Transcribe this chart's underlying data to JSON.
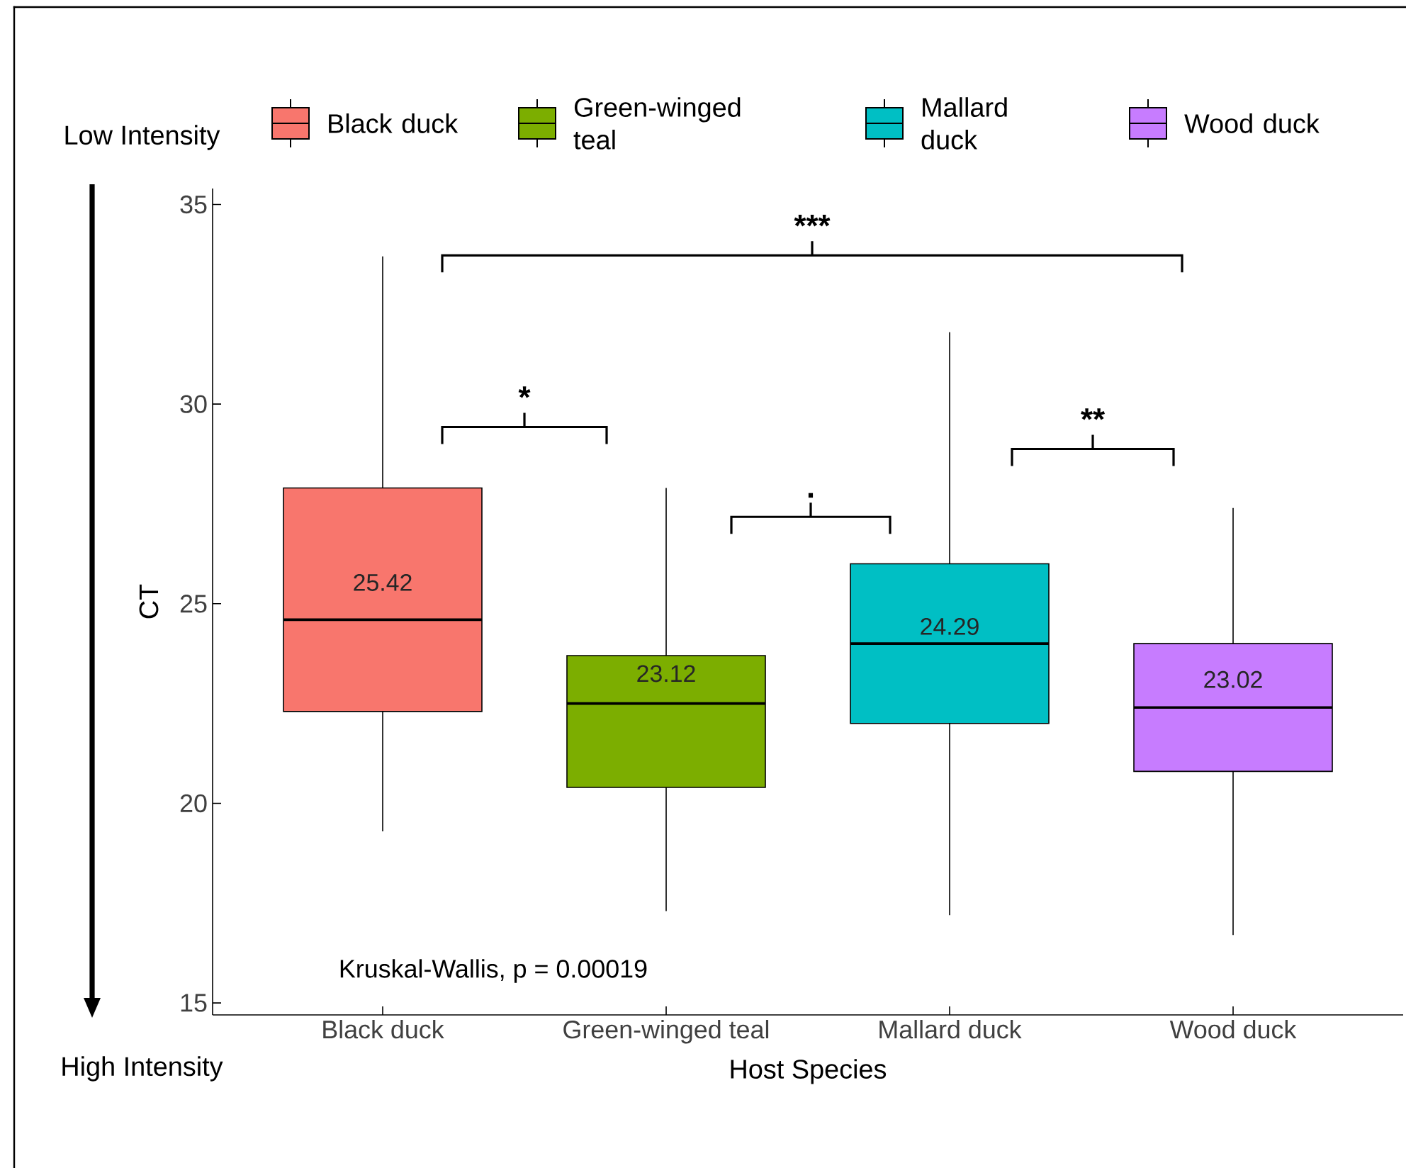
{
  "chart_data": {
    "type": "box",
    "xlabel": "Host Species",
    "ylabel": "CT",
    "categories": [
      "Black duck",
      "Green-winged teal",
      "Mallard duck",
      "Wood duck"
    ],
    "series": [
      {
        "name": "Black duck",
        "color": "#f8766d",
        "boxes": [
          {
            "low": 19.3,
            "q1": 22.3,
            "median": 24.6,
            "q3": 27.9,
            "high": 33.7
          },
          null,
          null,
          null
        ]
      },
      {
        "name": "Green-winged teal",
        "color": "#7cae00",
        "boxes": [
          null,
          {
            "low": 17.3,
            "q1": 20.4,
            "median": 22.5,
            "q3": 23.7,
            "high": 27.9
          },
          null,
          null
        ]
      },
      {
        "name": "Mallard duck",
        "color": "#00bfc4",
        "boxes": [
          null,
          null,
          {
            "low": 17.2,
            "q1": 22.0,
            "median": 24.0,
            "q3": 26.0,
            "high": 31.8
          },
          null
        ]
      },
      {
        "name": "Wood duck",
        "color": "#c77cff",
        "boxes": [
          null,
          null,
          null,
          {
            "low": 16.7,
            "q1": 20.8,
            "median": 22.4,
            "q3": 24.0,
            "high": 27.4
          }
        ]
      }
    ],
    "ylim": [
      14.7,
      35.4
    ],
    "yticks": [
      15,
      20,
      25,
      30,
      35
    ],
    "legend": "top",
    "annotations": [
      "Low Intensity",
      "High Intensity",
      "Kruskal-Wallis, p = 0.00019",
      "***",
      "*",
      ".",
      "**",
      "25.42",
      "23.12",
      "24.29",
      "23.02"
    ]
  }
}
